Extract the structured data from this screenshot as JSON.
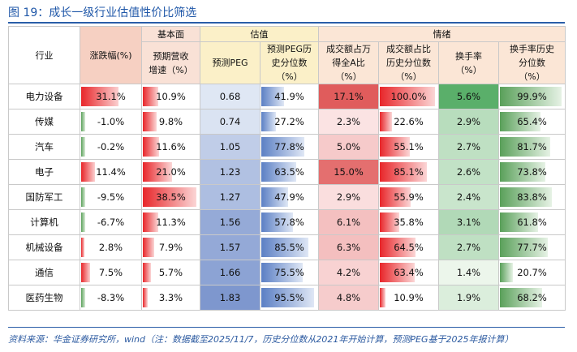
{
  "title": "图 19：成长一级行业估值性价比筛选",
  "groups": {
    "fundamentals": "基本面",
    "valuation": "估值",
    "sentiment": "情绪"
  },
  "columns": {
    "industry": "行业",
    "change": "涨跌幅(%)",
    "revenue_growth": "预期营收增速（%）",
    "peg": "预测PEG",
    "peg_pct": "预测PEG历史分位数（%）",
    "turnover_share": "成交额占万得全A比（%）",
    "turnover_share_pct": "成交额占比历史分位数（%）",
    "turnover_rate": "换手率（%）",
    "turnover_rate_pct": "换手率历史分位数（%）"
  },
  "rows": [
    {
      "industry": "电力设备",
      "change": "31.1%",
      "change_v": 31.1,
      "revenue_growth": "10.9%",
      "revenue_growth_v": 10.9,
      "peg": "0.68",
      "peg_v": 0.68,
      "peg_pct": "41.9%",
      "peg_pct_v": 41.9,
      "turnover_share": "17.1%",
      "turnover_share_v": 17.1,
      "turnover_share_pct": "100.0%",
      "turnover_share_pct_v": 100.0,
      "turnover_rate": "5.6%",
      "turnover_rate_v": 5.6,
      "turnover_rate_pct": "99.9%",
      "turnover_rate_pct_v": 99.9
    },
    {
      "industry": "传媒",
      "change": "-1.0%",
      "change_v": -1.0,
      "revenue_growth": "9.8%",
      "revenue_growth_v": 9.8,
      "peg": "0.74",
      "peg_v": 0.74,
      "peg_pct": "27.2%",
      "peg_pct_v": 27.2,
      "turnover_share": "2.3%",
      "turnover_share_v": 2.3,
      "turnover_share_pct": "22.6%",
      "turnover_share_pct_v": 22.6,
      "turnover_rate": "2.9%",
      "turnover_rate_v": 2.9,
      "turnover_rate_pct": "65.4%",
      "turnover_rate_pct_v": 65.4
    },
    {
      "industry": "汽车",
      "change": "-0.2%",
      "change_v": -0.2,
      "revenue_growth": "11.6%",
      "revenue_growth_v": 11.6,
      "peg": "1.05",
      "peg_v": 1.05,
      "peg_pct": "77.8%",
      "peg_pct_v": 77.8,
      "turnover_share": "5.0%",
      "turnover_share_v": 5.0,
      "turnover_share_pct": "55.1%",
      "turnover_share_pct_v": 55.1,
      "turnover_rate": "2.7%",
      "turnover_rate_v": 2.7,
      "turnover_rate_pct": "81.7%",
      "turnover_rate_pct_v": 81.7
    },
    {
      "industry": "电子",
      "change": "11.4%",
      "change_v": 11.4,
      "revenue_growth": "21.0%",
      "revenue_growth_v": 21.0,
      "peg": "1.23",
      "peg_v": 1.23,
      "peg_pct": "63.5%",
      "peg_pct_v": 63.5,
      "turnover_share": "15.0%",
      "turnover_share_v": 15.0,
      "turnover_share_pct": "85.1%",
      "turnover_share_pct_v": 85.1,
      "turnover_rate": "2.6%",
      "turnover_rate_v": 2.6,
      "turnover_rate_pct": "73.8%",
      "turnover_rate_pct_v": 73.8
    },
    {
      "industry": "国防军工",
      "change": "-9.5%",
      "change_v": -9.5,
      "revenue_growth": "38.5%",
      "revenue_growth_v": 38.5,
      "peg": "1.27",
      "peg_v": 1.27,
      "peg_pct": "47.9%",
      "peg_pct_v": 47.9,
      "turnover_share": "2.9%",
      "turnover_share_v": 2.9,
      "turnover_share_pct": "55.9%",
      "turnover_share_pct_v": 55.9,
      "turnover_rate": "2.4%",
      "turnover_rate_v": 2.4,
      "turnover_rate_pct": "83.8%",
      "turnover_rate_pct_v": 83.8
    },
    {
      "industry": "计算机",
      "change": "-6.7%",
      "change_v": -6.7,
      "revenue_growth": "11.3%",
      "revenue_growth_v": 11.3,
      "peg": "1.56",
      "peg_v": 1.56,
      "peg_pct": "57.8%",
      "peg_pct_v": 57.8,
      "turnover_share": "6.1%",
      "turnover_share_v": 6.1,
      "turnover_share_pct": "35.8%",
      "turnover_share_pct_v": 35.8,
      "turnover_rate": "3.1%",
      "turnover_rate_v": 3.1,
      "turnover_rate_pct": "61.8%",
      "turnover_rate_pct_v": 61.8
    },
    {
      "industry": "机械设备",
      "change": "2.8%",
      "change_v": 2.8,
      "revenue_growth": "7.9%",
      "revenue_growth_v": 7.9,
      "peg": "1.57",
      "peg_v": 1.57,
      "peg_pct": "85.5%",
      "peg_pct_v": 85.5,
      "turnover_share": "6.3%",
      "turnover_share_v": 6.3,
      "turnover_share_pct": "64.5%",
      "turnover_share_pct_v": 64.5,
      "turnover_rate": "2.7%",
      "turnover_rate_v": 2.7,
      "turnover_rate_pct": "77.7%",
      "turnover_rate_pct_v": 77.7
    },
    {
      "industry": "通信",
      "change": "7.5%",
      "change_v": 7.5,
      "revenue_growth": "5.7%",
      "revenue_growth_v": 5.7,
      "peg": "1.66",
      "peg_v": 1.66,
      "peg_pct": "75.5%",
      "peg_pct_v": 75.5,
      "turnover_share": "4.2%",
      "turnover_share_v": 4.2,
      "turnover_share_pct": "63.4%",
      "turnover_share_pct_v": 63.4,
      "turnover_rate": "1.4%",
      "turnover_rate_v": 1.4,
      "turnover_rate_pct": "20.7%",
      "turnover_rate_pct_v": 20.7
    },
    {
      "industry": "医药生物",
      "change": "-8.3%",
      "change_v": -8.3,
      "revenue_growth": "3.3%",
      "revenue_growth_v": 3.3,
      "peg": "1.83",
      "peg_v": 1.83,
      "peg_pct": "95.5%",
      "peg_pct_v": 95.5,
      "turnover_share": "4.8%",
      "turnover_share_v": 4.8,
      "turnover_share_pct": "10.9%",
      "turnover_share_pct_v": 10.9,
      "turnover_rate": "1.9%",
      "turnover_rate_v": 1.9,
      "turnover_rate_pct": "68.2%",
      "turnover_rate_pct_v": 68.2
    }
  ],
  "footer": "资料来源：华金证券研究所，wind（注：数据截至2025/11/7，历史分位数从2021年开始计算，预测PEG基于2025年报计算）",
  "colors": {
    "title_blue": "#1f57a8",
    "red_bar": "#e8262a",
    "blue_bar": "#5b7fc4",
    "green_bar": "#5aa05a",
    "peg_blue": "#8ea9d8",
    "share_red": "#e05c5c",
    "rate_green": "#5aaf6a"
  }
}
